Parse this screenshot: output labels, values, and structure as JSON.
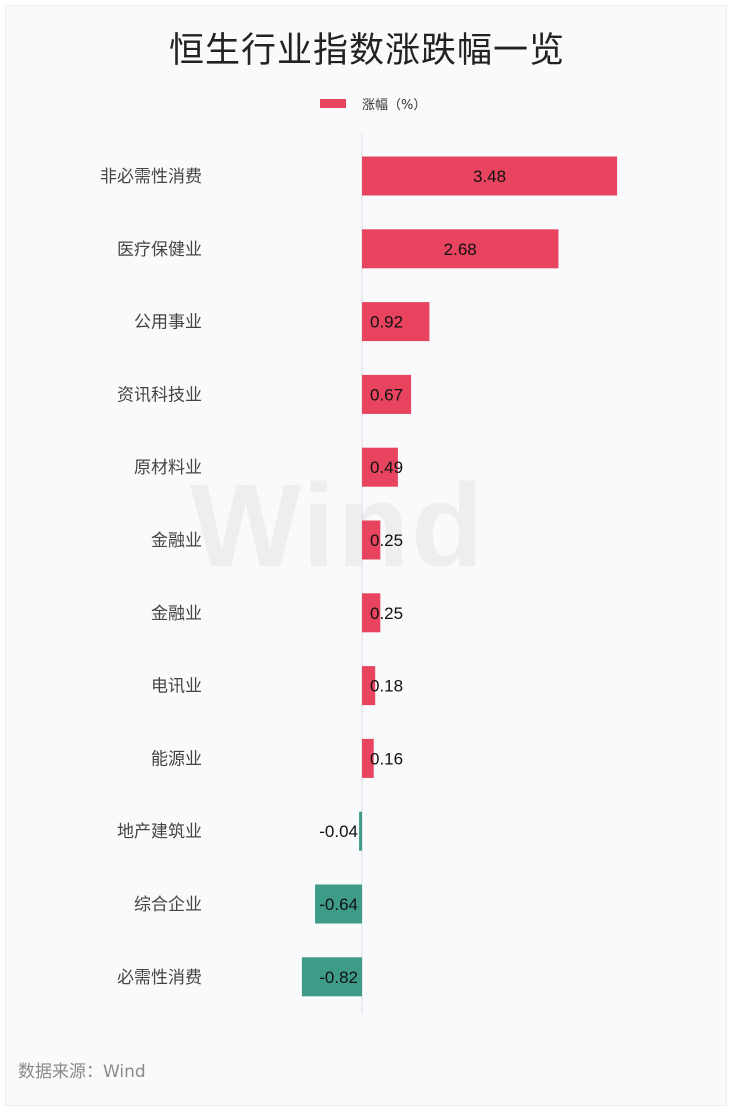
{
  "title": "恒生行业指数涨跌幅一览",
  "legend": {
    "label": "涨幅（%）"
  },
  "source": "数据来源：Wind",
  "watermark": "Wind",
  "colors": {
    "positive": "#e8445f",
    "negative": "#3d9b88",
    "axis": "#d9dce1",
    "label": "#444444",
    "value": "#111111"
  },
  "chart_data": {
    "type": "bar",
    "orientation": "horizontal",
    "categories": [
      "非必需性消费",
      "医疗保健业",
      "公用事业",
      "资讯科技业",
      "原材料业",
      "金融业",
      "金融业",
      "电讯业",
      "能源业",
      "地产建筑业",
      "综合企业",
      "必需性消费"
    ],
    "series": [
      {
        "name": "涨幅（%）",
        "values": [
          3.48,
          2.68,
          0.92,
          0.67,
          0.49,
          0.25,
          0.25,
          0.18,
          0.16,
          -0.04,
          -0.64,
          -0.82
        ]
      }
    ],
    "grid": false,
    "legend_position": "top-center"
  }
}
